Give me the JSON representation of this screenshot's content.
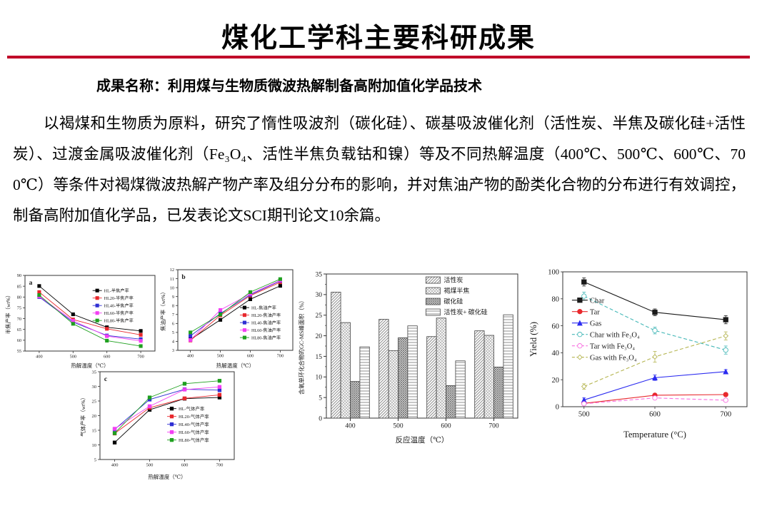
{
  "page": {
    "title": "煤化工学科主要科研成果",
    "subtitle": "成果名称：利用煤与生物质微波热解制备高附加值化学品技术",
    "paragraph": "以褐煤和生物质为原料，研究了惰性吸波剂（碳化硅）、碳基吸波催化剂（活性炭、半焦及碳化硅+活性炭）、过渡金属吸波催化剂（Fe₃O₄、活性半焦负载钴和镍）等及不同热解温度（400℃、500℃、600℃、700℃）等条件对褐煤微波热解产物产率及组分分布的影响，并对焦油产物的酚类化合物的分布进行有效调控，制备高附加值化学品，已发表论文SCI期刊论文10余篇。",
    "accent_color": "#c00028"
  },
  "chart_data": [
    {
      "id": "a",
      "type": "line",
      "panel_label": "a",
      "title": "",
      "xlabel": "热解温度（℃）",
      "ylabel": "半焦产率（wt%）",
      "x": [
        400,
        500,
        600,
        700
      ],
      "xlim": [
        358,
        742
      ],
      "ylim": [
        55,
        90
      ],
      "ytick": 5,
      "legend_position": "right-upper-inside",
      "series": [
        {
          "name": "HL-半焦产率",
          "color": "#000000",
          "marker": "square",
          "values": [
            85.1,
            72.0,
            66.0,
            64.3
          ]
        },
        {
          "name": "HL20-半焦产率",
          "color": "#e8282d",
          "marker": "square",
          "values": [
            82.3,
            69.6,
            65.3,
            62.5
          ]
        },
        {
          "name": "HL40-半焦产率",
          "color": "#2f2fd3",
          "marker": "square",
          "values": [
            80.0,
            68.4,
            62.2,
            60.5
          ]
        },
        {
          "name": "HL60-半焦产率",
          "color": "#f23ff2",
          "marker": "square",
          "values": [
            80.3,
            69.0,
            61.9,
            59.7
          ]
        },
        {
          "name": "HL80-半焦产率",
          "color": "#1fa01f",
          "marker": "square",
          "values": [
            80.9,
            67.6,
            59.8,
            57.3
          ]
        }
      ]
    },
    {
      "id": "b",
      "type": "line",
      "panel_label": "b",
      "title": "",
      "xlabel": "热解温度（℃）",
      "ylabel": "焦油产率（wt%）",
      "x": [
        400,
        500,
        600,
        700
      ],
      "xlim": [
        358,
        742
      ],
      "ylim": [
        3,
        12
      ],
      "ytick": 1,
      "legend_position": "right-middle-inside",
      "series": [
        {
          "name": "HL-焦油产率",
          "color": "#000000",
          "marker": "square",
          "values": [
            4.2,
            6.4,
            8.7,
            10.2
          ]
        },
        {
          "name": "HL20-焦油产率",
          "color": "#e8282d",
          "marker": "square",
          "values": [
            4.1,
            6.9,
            9.1,
            10.6
          ]
        },
        {
          "name": "HL40-焦油产率",
          "color": "#2f2fd3",
          "marker": "square",
          "values": [
            4.6,
            7.1,
            9.2,
            10.75
          ]
        },
        {
          "name": "HL60-焦油产率",
          "color": "#f23ff2",
          "marker": "square",
          "values": [
            4.15,
            7.5,
            9.3,
            10.8
          ]
        },
        {
          "name": "HL80-焦油产率",
          "color": "#1fa01f",
          "marker": "square",
          "values": [
            5.0,
            7.0,
            9.5,
            10.95
          ]
        }
      ]
    },
    {
      "id": "c",
      "type": "line",
      "panel_label": "c",
      "title": "",
      "xlabel": "热解温度（℃）",
      "ylabel": "气体产率（wt%）",
      "x": [
        400,
        500,
        600,
        700
      ],
      "xlim": [
        358,
        742
      ],
      "ylim": [
        5,
        35
      ],
      "ytick": 5,
      "legend_position": "right-middle-inside",
      "series": [
        {
          "name": "HL-气体产率",
          "color": "#000000",
          "marker": "square",
          "values": [
            10.8,
            22.0,
            25.8,
            26.2
          ]
        },
        {
          "name": "HL20-气体产率",
          "color": "#e8282d",
          "marker": "square",
          "values": [
            13.9,
            22.7,
            25.9,
            27.1
          ]
        },
        {
          "name": "HL40-气体产率",
          "color": "#2f2fd3",
          "marker": "square",
          "values": [
            15.3,
            25.5,
            29.0,
            28.7
          ]
        },
        {
          "name": "HL60-气体产率",
          "color": "#f23ff2",
          "marker": "square",
          "values": [
            15.5,
            23.2,
            28.9,
            29.8
          ]
        },
        {
          "name": "HL80-气体产率",
          "color": "#1fa01f",
          "marker": "square",
          "values": [
            14.0,
            26.2,
            30.9,
            31.9
          ]
        }
      ]
    },
    {
      "id": "bar",
      "type": "bar",
      "title": "",
      "xlabel": "反应温度（℃）",
      "ylabel": "含氧单环化合物的GC-MS峰面积（%）",
      "categories": [
        "400",
        "500",
        "600",
        "700"
      ],
      "ylim": [
        0,
        35
      ],
      "ytick": 5,
      "legend_position": "top-right-inside",
      "series": [
        {
          "name": "活性炭",
          "pattern": "diagonal",
          "values": [
            30.6,
            24.0,
            19.8,
            21.2
          ]
        },
        {
          "name": "褐煤半焦",
          "pattern": "crosshatch",
          "values": [
            23.2,
            16.4,
            24.3,
            20.1
          ]
        },
        {
          "name": "碳化硅",
          "pattern": "dense-cross",
          "values": [
            8.9,
            19.5,
            7.9,
            12.4
          ]
        },
        {
          "name": "活性炭+ 碳化硅",
          "pattern": "horizontal",
          "values": [
            17.3,
            22.4,
            13.9,
            25.1
          ]
        }
      ]
    },
    {
      "id": "right",
      "type": "line",
      "panel_label": "",
      "title": "",
      "xlabel": "Temperature (°C)",
      "ylabel": "Yield (%)",
      "x": [
        500,
        600,
        700
      ],
      "xlim": [
        470,
        730
      ],
      "ylim": [
        0,
        100
      ],
      "ytick": 20,
      "legend_position": "left-middle-inside",
      "series": [
        {
          "name": "Char",
          "color": "#1a1a1a",
          "marker": "square",
          "values": [
            92.5,
            70.0,
            64.5
          ],
          "err": [
            3.0,
            2.5,
            3.0
          ]
        },
        {
          "name": "Tar",
          "color": "#e8282d",
          "marker": "circle",
          "values": [
            2.5,
            8.5,
            9.0
          ],
          "err": [
            1.0,
            1.0,
            1.0
          ]
        },
        {
          "name": "Gas",
          "color": "#2a2af0",
          "marker": "triangle",
          "values": [
            5.0,
            21.5,
            26.0
          ],
          "err": [
            1.5,
            2.0,
            1.5
          ]
        },
        {
          "name": "Char with Fe₃O₄",
          "color": "#45b8b8",
          "marker": "circle",
          "open": true,
          "dash": true,
          "values": [
            82.0,
            56.5,
            42.0
          ],
          "err": [
            3.0,
            2.5,
            3.0
          ]
        },
        {
          "name": "Tar with Fe₃O₄",
          "color": "#f86ee0",
          "marker": "circle",
          "open": true,
          "dash": true,
          "values": [
            2.2,
            6.5,
            4.8
          ],
          "err": [
            0.8,
            1.2,
            1.0
          ]
        },
        {
          "name": "Gas with Fe₃O₄",
          "color": "#b5b551",
          "marker": "diamond",
          "open": true,
          "dash": true,
          "values": [
            15.0,
            37.0,
            52.5
          ],
          "err": [
            2.0,
            4.0,
            3.0
          ]
        }
      ]
    }
  ]
}
